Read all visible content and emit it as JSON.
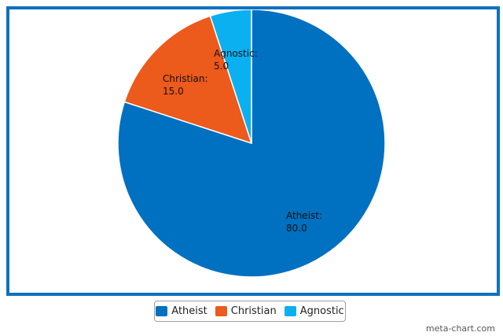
{
  "chart_data": {
    "type": "pie",
    "slices": [
      {
        "name": "Atheist",
        "value": 80.0,
        "display": "80.0",
        "color": "#0070c0"
      },
      {
        "name": "Christian",
        "value": 15.0,
        "display": "15.0",
        "color": "#ec5a1c"
      },
      {
        "name": "Agnostic",
        "value": 5.0,
        "display": "5.0",
        "color": "#0bb0f0"
      }
    ],
    "legend": {
      "position": "bottom-center",
      "items": [
        "Atheist",
        "Christian",
        "Agnostic"
      ]
    },
    "start_angle": "12 o'clock",
    "direction": "clockwise"
  },
  "watermark": "meta-chart.com",
  "colors": {
    "frame": "#1070bf",
    "slice_border": "#ffffff"
  }
}
